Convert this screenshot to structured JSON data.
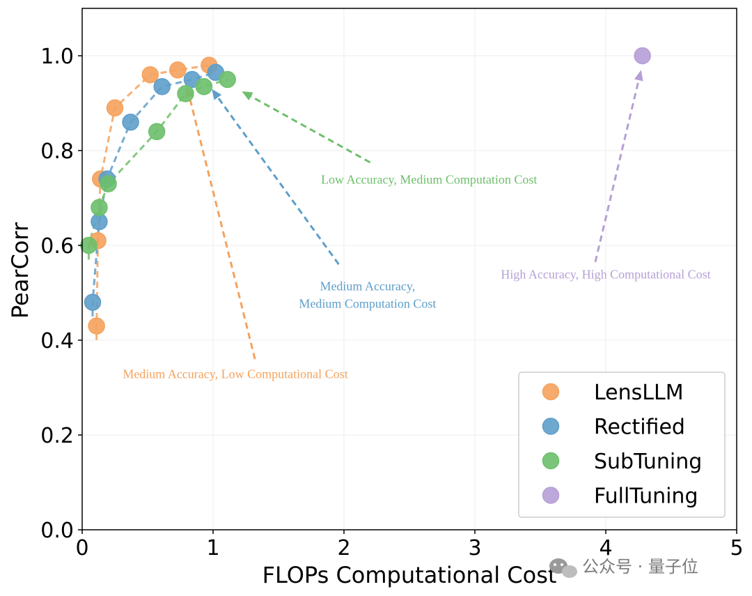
{
  "chart_data": {
    "type": "scatter",
    "xlabel": "FLOPs Computational Cost",
    "ylabel": "PearCorr",
    "xlim": [
      0,
      5
    ],
    "ylim": [
      0,
      1.1
    ],
    "x_ticks": [
      "0",
      "1",
      "2",
      "3",
      "4",
      "5"
    ],
    "y_ticks": [
      "0.0",
      "0.2",
      "0.4",
      "0.6",
      "0.8",
      "1.0"
    ],
    "grid": true,
    "legend_position": "bottom-right",
    "series": [
      {
        "name": "LensLLM",
        "color": "#f5a25d",
        "points": [
          {
            "x": 0.11,
            "y": 0.43
          },
          {
            "x": 0.12,
            "y": 0.61
          },
          {
            "x": 0.14,
            "y": 0.74
          },
          {
            "x": 0.25,
            "y": 0.89
          },
          {
            "x": 0.52,
            "y": 0.96
          },
          {
            "x": 0.73,
            "y": 0.97
          },
          {
            "x": 0.97,
            "y": 0.98
          }
        ]
      },
      {
        "name": "Rectified",
        "color": "#5e9ec9",
        "points": [
          {
            "x": 0.08,
            "y": 0.48
          },
          {
            "x": 0.13,
            "y": 0.65
          },
          {
            "x": 0.19,
            "y": 0.74
          },
          {
            "x": 0.37,
            "y": 0.86
          },
          {
            "x": 0.61,
            "y": 0.935
          },
          {
            "x": 0.84,
            "y": 0.95
          },
          {
            "x": 1.02,
            "y": 0.965
          }
        ]
      },
      {
        "name": "SubTuning",
        "color": "#6dbf6b",
        "points": [
          {
            "x": 0.05,
            "y": 0.6
          },
          {
            "x": 0.13,
            "y": 0.68
          },
          {
            "x": 0.2,
            "y": 0.73
          },
          {
            "x": 0.57,
            "y": 0.84
          },
          {
            "x": 0.79,
            "y": 0.92
          },
          {
            "x": 0.93,
            "y": 0.935
          },
          {
            "x": 1.11,
            "y": 0.95
          }
        ]
      },
      {
        "name": "FullTuning",
        "color": "#b59fd6",
        "points": [
          {
            "x": 4.28,
            "y": 1.0
          }
        ]
      }
    ],
    "annotations": [
      {
        "lines": [
          "Low Accuracy, Medium Computation Cost"
        ],
        "color": "#6dbf6b",
        "text_at": {
          "x": 2.65,
          "y": 0.73
        },
        "arrow_from": {
          "x": 2.2,
          "y": 0.775
        },
        "arrow_to": {
          "x": 1.22,
          "y": 0.925
        }
      },
      {
        "lines": [
          "Medium Accuracy,",
          "Medium Computation Cost"
        ],
        "color": "#5e9ec9",
        "text_at": {
          "x": 2.18,
          "y": 0.505
        },
        "arrow_from": {
          "x": 1.96,
          "y": 0.56
        },
        "arrow_to": {
          "x": 0.99,
          "y": 0.93
        }
      },
      {
        "lines": [
          "Medium Accuracy, Low Computational Cost"
        ],
        "color": "#f5a25d",
        "text_at": {
          "x": 1.17,
          "y": 0.32
        },
        "arrow_from": {
          "x": 1.32,
          "y": 0.36
        },
        "arrow_to": {
          "x": 0.8,
          "y": 0.935
        }
      },
      {
        "lines": [
          "High Accuracy, High Computational Cost"
        ],
        "color": "#b59fd6",
        "text_at": {
          "x": 4.0,
          "y": 0.53
        },
        "arrow_from": {
          "x": 3.92,
          "y": 0.565
        },
        "arrow_to": {
          "x": 4.27,
          "y": 0.97
        }
      }
    ]
  },
  "watermark": "公众号 · 量子位"
}
